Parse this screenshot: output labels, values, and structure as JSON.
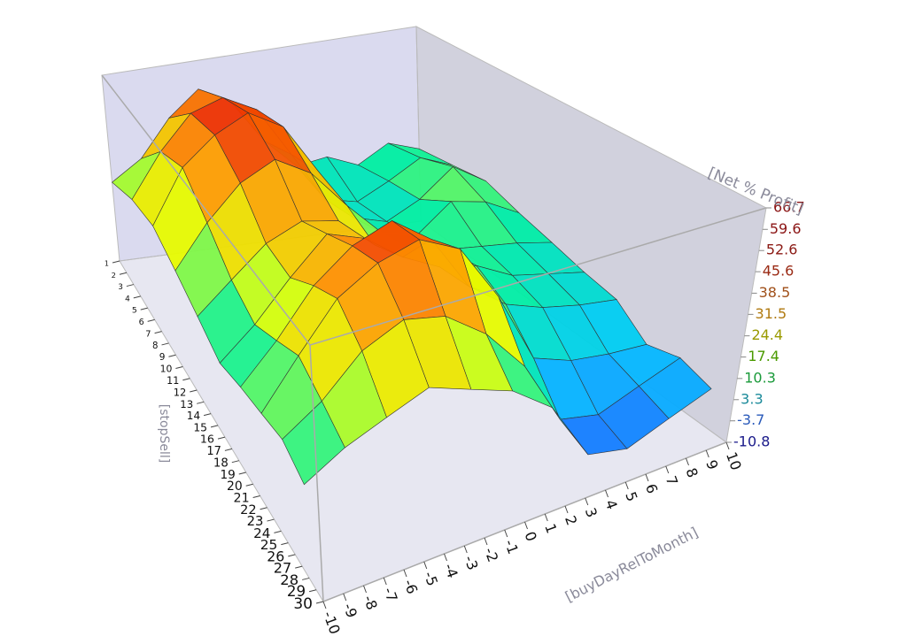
{
  "chart_data": {
    "type": "surface",
    "x_label": "[buyDayRelToMonth]",
    "y_label": "[stopSell]",
    "z_label": "[Net % Profit]",
    "x": [
      -10,
      -8,
      -6,
      -4,
      -2,
      0,
      2,
      4,
      6,
      8,
      10
    ],
    "y": [
      1,
      4,
      7,
      10,
      13,
      16,
      19,
      22,
      25,
      28
    ],
    "values": [
      [
        22,
        30,
        45,
        55,
        48,
        30,
        18,
        20,
        15,
        22,
        18
      ],
      [
        28,
        45,
        58,
        62,
        55,
        35,
        15,
        12,
        18,
        25,
        20
      ],
      [
        30,
        50,
        60,
        66,
        58,
        38,
        18,
        14,
        20,
        30,
        22
      ],
      [
        25,
        40,
        52,
        58,
        50,
        35,
        22,
        18,
        28,
        25,
        18
      ],
      [
        20,
        30,
        40,
        45,
        42,
        30,
        25,
        22,
        20,
        18,
        15
      ],
      [
        15,
        25,
        38,
        50,
        45,
        35,
        28,
        25,
        18,
        15,
        12
      ],
      [
        18,
        30,
        45,
        55,
        60,
        50,
        30,
        20,
        15,
        12,
        10
      ],
      [
        20,
        35,
        50,
        58,
        62,
        55,
        35,
        10,
        5,
        3,
        2
      ],
      [
        22,
        30,
        42,
        48,
        45,
        35,
        20,
        -2,
        -5,
        0,
        5
      ],
      [
        18,
        25,
        30,
        35,
        30,
        25,
        15,
        -5,
        -8,
        -3,
        2
      ]
    ],
    "xlim": [
      -10,
      10
    ],
    "xticks": [
      -10,
      -9,
      -8,
      -7,
      -6,
      -5,
      -4,
      -3,
      -2,
      -1,
      0,
      1,
      2,
      3,
      4,
      5,
      6,
      7,
      8,
      9,
      10
    ],
    "ylim": [
      1,
      30
    ],
    "yticks": [
      1,
      2,
      3,
      4,
      5,
      6,
      7,
      8,
      9,
      10,
      11,
      12,
      13,
      14,
      15,
      16,
      17,
      18,
      19,
      20,
      21,
      22,
      23,
      24,
      25,
      26,
      27,
      28,
      29,
      30
    ],
    "zlim": [
      -10.8,
      66.7
    ],
    "zticks": [
      66.7,
      59.6,
      52.6,
      45.6,
      38.5,
      31.5,
      24.4,
      17.4,
      10.3,
      3.3,
      -3.7,
      -10.8
    ],
    "ztick_colors": [
      "#8b1414",
      "#8b1414",
      "#8b1a14",
      "#9a2a14",
      "#a0501a",
      "#b07a10",
      "#9a9a00",
      "#4a9a00",
      "#1a9a3a",
      "#1a8a9a",
      "#2a5aba",
      "#1a1a8a"
    ],
    "colorscale": [
      "#1e50ff",
      "#00c8ff",
      "#00f0a0",
      "#e6ff00",
      "#ff9900",
      "#e60000"
    ]
  }
}
